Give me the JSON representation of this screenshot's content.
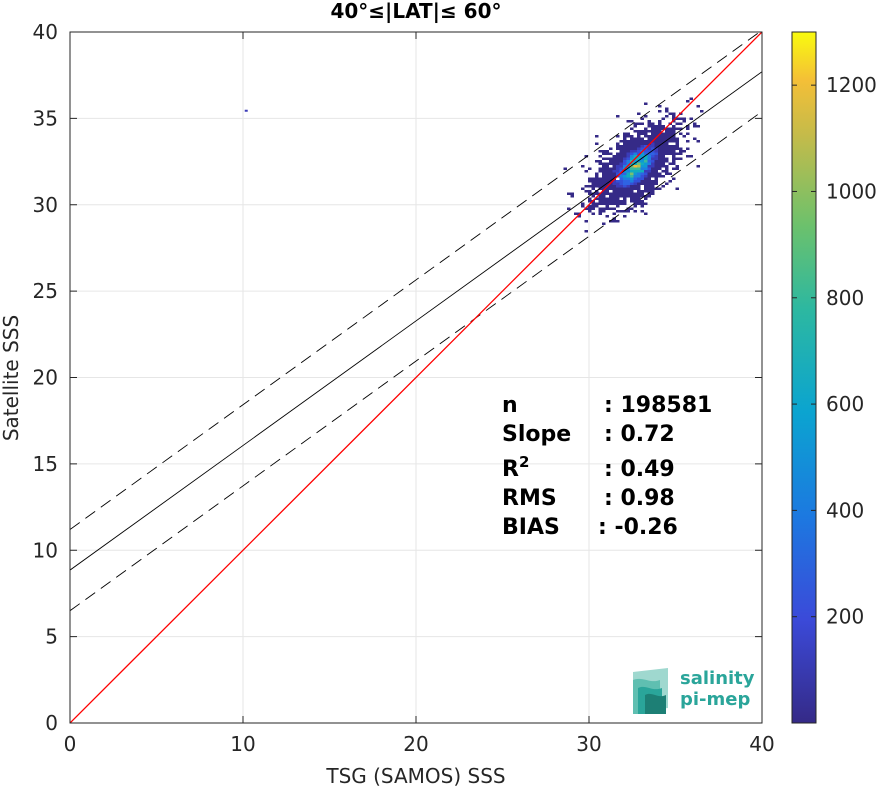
{
  "chart_data": {
    "type": "heatmap",
    "title": "40°≤|LAT|≤ 60°",
    "xlabel": "TSG (SAMOS) SSS",
    "ylabel": "Satellite SSS",
    "xlim": [
      0,
      40
    ],
    "ylim": [
      0,
      40
    ],
    "xticks": [
      "0",
      "10",
      "20",
      "30",
      "40"
    ],
    "yticks": [
      "0",
      "5",
      "10",
      "15",
      "20",
      "25",
      "30",
      "35",
      "40"
    ],
    "grid": true,
    "colorbar": {
      "range": [
        0,
        1300
      ],
      "ticks": [
        "200",
        "400",
        "600",
        "800",
        "1000",
        "1200"
      ],
      "colormap": "parula"
    },
    "density_cloud": {
      "center": [
        32.6,
        32.3
      ],
      "peak_count": 1300,
      "x_extent": [
        26,
        38
      ],
      "y_extent": [
        28,
        37
      ],
      "outlier": [
        10.1,
        35.5
      ]
    },
    "lines": {
      "one_to_one": {
        "x": [
          0,
          40
        ],
        "y": [
          0,
          40
        ],
        "color": "#ff0000"
      },
      "fit": {
        "x": [
          0,
          40
        ],
        "y": [
          8.85,
          37.7
        ],
        "color": "#000000"
      },
      "fit_upper": {
        "x": [
          0,
          40
        ],
        "y": [
          11.2,
          40.1
        ],
        "style": "dashed"
      },
      "fit_lower": {
        "x": [
          0,
          40
        ],
        "y": [
          6.5,
          35.4
        ],
        "style": "dashed"
      }
    },
    "stats": [
      {
        "label": "n",
        "value": ": 198581"
      },
      {
        "label": "Slope",
        "value": ": 0.72"
      },
      {
        "label": "R",
        "sup": "2",
        "value": ": 0.49"
      },
      {
        "label": "RMS",
        "value": ": 0.98"
      },
      {
        "label": "BIAS",
        "value": ": -0.26"
      }
    ]
  },
  "logo": {
    "line1": "salinity",
    "line2": "pi-mep",
    "color": "#2aa59a"
  }
}
